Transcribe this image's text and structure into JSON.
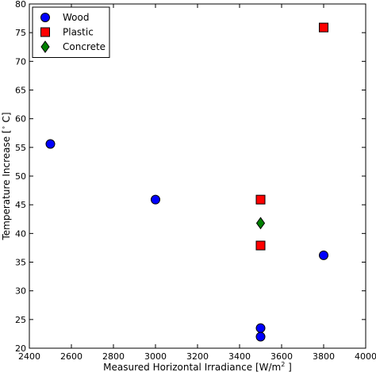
{
  "chart_data": {
    "type": "scatter",
    "title": "",
    "xlabel": "Measured Horizontal Irradiance [W/m",
    "xlabel_superscript": "2",
    "xlabel_suffix": " ]",
    "ylabel": "Temperature Increase [",
    "ylabel_superscript": "∘",
    "ylabel_suffix": " C]",
    "xlim": [
      2400,
      4000
    ],
    "ylim": [
      20,
      80
    ],
    "xticks": [
      "2400",
      "2600",
      "2800",
      "3000",
      "3200",
      "3400",
      "3600",
      "3800",
      "4000"
    ],
    "yticks": [
      "20",
      "25",
      "30",
      "35",
      "40",
      "45",
      "50",
      "55",
      "60",
      "65",
      "70",
      "75",
      "80"
    ],
    "grid": false,
    "legend_position": "top-left",
    "series": [
      {
        "name": "Wood",
        "marker": "circle",
        "color": "#0000ff",
        "points": [
          {
            "x": 2500,
            "y": 55.6
          },
          {
            "x": 3000,
            "y": 45.9
          },
          {
            "x": 3500,
            "y": 23.5
          },
          {
            "x": 3500,
            "y": 22.0
          },
          {
            "x": 3800,
            "y": 36.2
          }
        ]
      },
      {
        "name": "Plastic",
        "marker": "square",
        "color": "#ff0000",
        "points": [
          {
            "x": 3500,
            "y": 45.9
          },
          {
            "x": 3500,
            "y": 37.9
          },
          {
            "x": 3800,
            "y": 75.9
          }
        ]
      },
      {
        "name": "Concrete",
        "marker": "diamond",
        "color": "#008000",
        "points": [
          {
            "x": 3500,
            "y": 41.8
          }
        ]
      }
    ]
  }
}
